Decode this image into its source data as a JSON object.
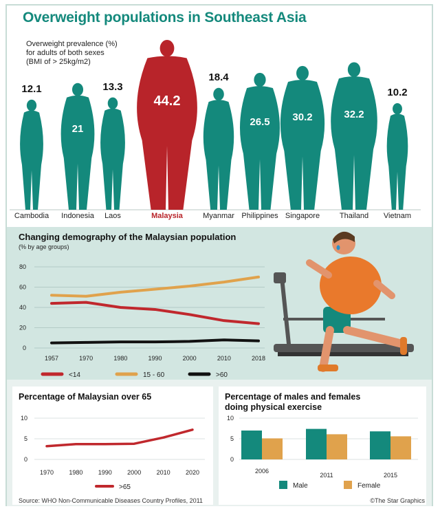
{
  "title": "Overweight populations in Southeast Asia",
  "prevalence_label": "Overweight prevalence (%)\nfor adults of both sexes\n(BMI of > 25kg/m2)",
  "colors": {
    "teal": "#14897c",
    "red": "#b8242a",
    "orange": "#e0a24c",
    "black": "#111111",
    "panel_bg": "#d2e6e1"
  },
  "chart_data": [
    {
      "type": "bar",
      "title": "Overweight populations in Southeast Asia",
      "ylabel": "Overweight prevalence (%) for adults of both sexes (BMI of > 25kg/m2)",
      "categories": [
        "Cambodia",
        "Indonesia",
        "Laos",
        "Malaysia",
        "Myanmar",
        "Philippines",
        "Singapore",
        "Thailand",
        "Vietnam"
      ],
      "values": [
        12.1,
        21,
        13.3,
        44.2,
        18.4,
        26.5,
        30.2,
        32.2,
        10.2
      ],
      "labels": [
        "12.1",
        "21",
        "13.3",
        "44.2",
        "18.4",
        "26.5",
        "30.2",
        "32.2",
        "10.2"
      ],
      "highlight": "Malaysia"
    },
    {
      "type": "line",
      "title": "Changing demography of the Malaysian population",
      "subtitle": "(% by age groups)",
      "x": [
        "1957",
        "1970",
        "1980",
        "1990",
        "2000",
        "2010",
        "2018"
      ],
      "ylim": [
        0,
        80
      ],
      "yticks": [
        "0",
        "20",
        "40",
        "60",
        "80"
      ],
      "series": [
        {
          "name": "<14",
          "color": "#c0282d",
          "values": [
            44,
            45,
            40,
            38,
            33,
            27,
            24
          ]
        },
        {
          "name": "15 - 60",
          "color": "#e0a24c",
          "values": [
            52,
            51,
            55,
            58,
            61,
            65,
            70
          ]
        },
        {
          "name": ">60",
          "color": "#111111",
          "values": [
            5,
            5.5,
            6,
            6,
            6.5,
            8,
            7
          ]
        }
      ]
    },
    {
      "type": "line",
      "title": "Percentage of Malaysian over 65",
      "x": [
        "1970",
        "1980",
        "1990",
        "2000",
        "2010",
        "2020"
      ],
      "ylim": [
        0,
        10
      ],
      "yticks": [
        "0",
        "5",
        "10"
      ],
      "series": [
        {
          "name": ">65",
          "color": "#c0282d",
          "values": [
            3.2,
            3.7,
            3.7,
            3.8,
            5.3,
            7.2
          ]
        }
      ]
    },
    {
      "type": "bar",
      "title": "Percentage of males and females doing physical exercise",
      "categories": [
        "2006",
        "2011",
        "2015"
      ],
      "ylim": [
        0,
        10
      ],
      "yticks": [
        "0",
        "5",
        "10"
      ],
      "series": [
        {
          "name": "Male",
          "color": "#14897c",
          "values": [
            7.0,
            7.4,
            6.8
          ]
        },
        {
          "name": "Female",
          "color": "#e0a24c",
          "values": [
            5.1,
            6.1,
            5.6
          ]
        }
      ]
    }
  ],
  "source": "Source: WHO Non-Communicable Diseases Country Profiles, 2011",
  "credit": "©The Star Graphics"
}
